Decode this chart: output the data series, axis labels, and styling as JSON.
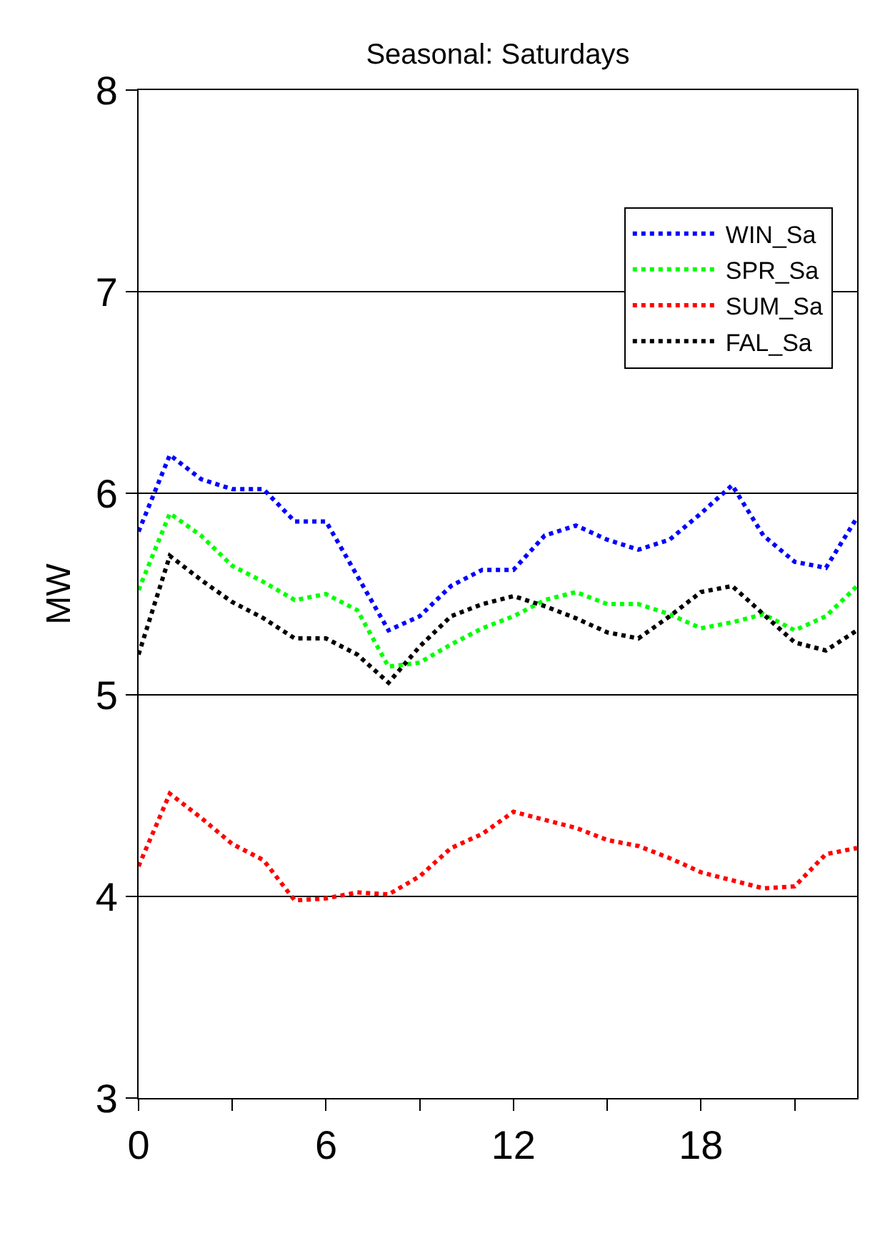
{
  "chart_data": {
    "type": "line",
    "title": "Seasonal: Saturdays",
    "ylabel": "MW",
    "x": [
      0,
      1,
      2,
      3,
      4,
      5,
      6,
      7,
      8,
      9,
      10,
      11,
      12,
      13,
      14,
      15,
      16,
      17,
      18,
      19,
      20,
      21,
      22,
      23
    ],
    "series": [
      {
        "name": "WIN_Sa",
        "color": "#0000ff",
        "values": [
          5.81,
          6.19,
          6.07,
          6.02,
          6.02,
          5.86,
          5.86,
          5.59,
          5.32,
          5.39,
          5.54,
          5.62,
          5.62,
          5.79,
          5.84,
          5.77,
          5.72,
          5.77,
          5.9,
          6.04,
          5.79,
          5.66,
          5.63,
          5.88
        ]
      },
      {
        "name": "SPR_Sa",
        "color": "#00ff00",
        "values": [
          5.52,
          5.9,
          5.79,
          5.64,
          5.56,
          5.47,
          5.5,
          5.42,
          5.14,
          5.16,
          5.25,
          5.33,
          5.39,
          5.47,
          5.51,
          5.45,
          5.45,
          5.4,
          5.33,
          5.36,
          5.4,
          5.32,
          5.39,
          5.54
        ]
      },
      {
        "name": "SUM_Sa",
        "color": "#ff0000",
        "values": [
          4.15,
          4.51,
          4.39,
          4.26,
          4.18,
          3.98,
          3.99,
          4.02,
          4.01,
          4.1,
          4.24,
          4.31,
          4.42,
          4.38,
          4.34,
          4.28,
          4.25,
          4.19,
          4.12,
          4.08,
          4.04,
          4.05,
          4.21,
          4.24
        ]
      },
      {
        "name": "FAL_Sa",
        "color": "#000000",
        "values": [
          5.2,
          5.69,
          5.57,
          5.46,
          5.38,
          5.28,
          5.28,
          5.2,
          5.06,
          5.24,
          5.39,
          5.45,
          5.49,
          5.44,
          5.38,
          5.31,
          5.28,
          5.39,
          5.51,
          5.54,
          5.4,
          5.26,
          5.22,
          5.32
        ]
      }
    ],
    "xlim": [
      0,
      23
    ],
    "xticks": [
      0,
      {
        "value": 3,
        "label": null
      },
      6,
      {
        "value": 9,
        "label": null
      },
      12,
      {
        "value": 15,
        "label": null
      },
      18,
      {
        "value": 21,
        "label": null
      }
    ],
    "ylim": [
      3,
      8
    ],
    "yticks": [
      3,
      4,
      5,
      6,
      7,
      8
    ],
    "grid": "y",
    "legend": "top right",
    "marker": "none",
    "line_style": "dotted"
  }
}
